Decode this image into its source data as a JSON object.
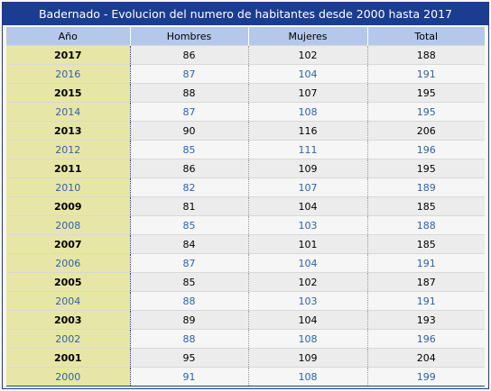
{
  "chart_data": {
    "type": "table",
    "title": "Badernado - Evolucion del numero de habitantes desde 2000 hasta 2017",
    "columns": [
      "Año",
      "Hombres",
      "Mujeres",
      "Total"
    ],
    "rows": [
      [
        "2017",
        "86",
        "102",
        "188"
      ],
      [
        "2016",
        "87",
        "104",
        "191"
      ],
      [
        "2015",
        "88",
        "107",
        "195"
      ],
      [
        "2014",
        "87",
        "108",
        "195"
      ],
      [
        "2013",
        "90",
        "116",
        "206"
      ],
      [
        "2012",
        "85",
        "111",
        "196"
      ],
      [
        "2011",
        "86",
        "109",
        "195"
      ],
      [
        "2010",
        "82",
        "107",
        "189"
      ],
      [
        "2009",
        "81",
        "104",
        "185"
      ],
      [
        "2008",
        "85",
        "103",
        "188"
      ],
      [
        "2007",
        "84",
        "101",
        "185"
      ],
      [
        "2006",
        "87",
        "104",
        "191"
      ],
      [
        "2005",
        "85",
        "102",
        "187"
      ],
      [
        "2004",
        "88",
        "103",
        "191"
      ],
      [
        "2003",
        "89",
        "104",
        "193"
      ],
      [
        "2002",
        "88",
        "108",
        "196"
      ],
      [
        "2001",
        "95",
        "109",
        "204"
      ],
      [
        "2000",
        "91",
        "108",
        "199"
      ]
    ],
    "colors": {
      "header_bar": "#1b3d91",
      "column_header": "#b3c8ea",
      "year_column": "#e7e6a6",
      "alternate_row_text": "#2e62a8"
    }
  }
}
